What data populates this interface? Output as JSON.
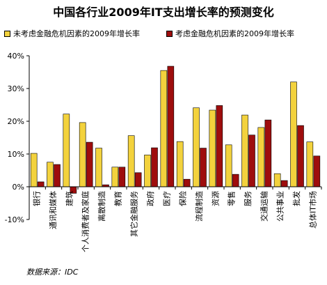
{
  "colors": {
    "series1": "#F3D23D",
    "series2": "#9E0D0D",
    "axis": "#000000"
  },
  "chart_data": {
    "type": "bar",
    "title": "中国各行业2009年IT支出增长率的预测变化",
    "categories": [
      "银行",
      "通讯和媒体",
      "建筑",
      "个人消费者及家庭",
      "离散制造",
      "教育",
      "其它金融服务",
      "政府",
      "医疗",
      "保险",
      "流程制造",
      "资源",
      "零售",
      "服务",
      "交通运输",
      "公共事业",
      "批发",
      "总体IT市场"
    ],
    "series": [
      {
        "name": "未考虑金融危机因素的2009年增长率",
        "values": [
          10.2,
          7.5,
          22.2,
          19.6,
          11.8,
          6.0,
          15.6,
          9.7,
          35.5,
          13.8,
          24.1,
          23.4,
          12.8,
          21.9,
          18.1,
          4.0,
          32.0,
          13.7
        ]
      },
      {
        "name": "考虑金融危机因素的2009年增长率",
        "values": [
          1.5,
          6.8,
          -2.0,
          13.6,
          0.6,
          6.0,
          4.3,
          11.9,
          36.8,
          2.3,
          11.8,
          24.8,
          3.8,
          15.8,
          20.4,
          1.9,
          18.7,
          9.4
        ]
      }
    ],
    "yticks": [
      "40%",
      "30%",
      "20%",
      "10%",
      "0%",
      "-10%"
    ],
    "ylim": [
      -10,
      40
    ],
    "grid": false,
    "legend": "top"
  },
  "source": "数据来源：IDC"
}
